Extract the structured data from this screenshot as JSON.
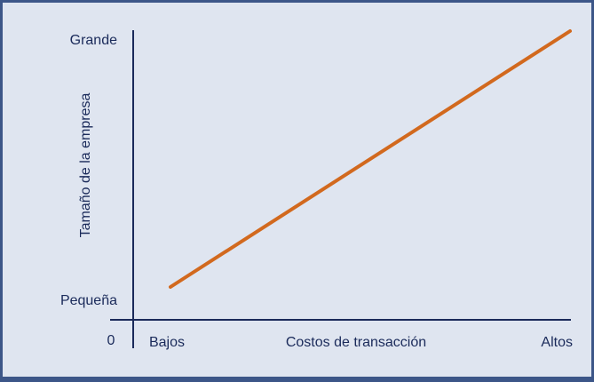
{
  "axes": {
    "y_title": "Tamaño de la empresa",
    "y_top": "Grande",
    "y_bottom": "Pequeña",
    "origin": "0",
    "x_left": "Bajos",
    "x_title": "Costos de transacción",
    "x_right": "Altos"
  }
}
